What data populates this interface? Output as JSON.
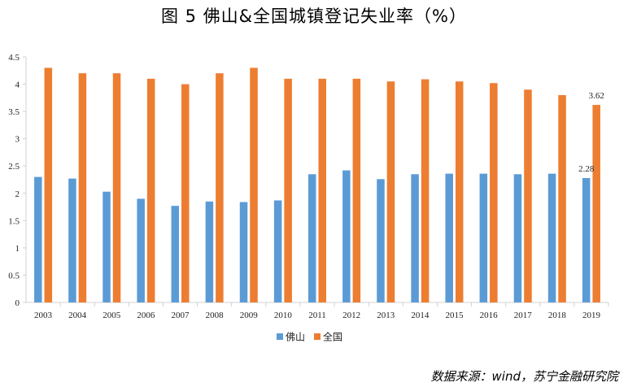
{
  "title": "图 5   佛山&全国城镇登记失业率（%）",
  "source": "数据来源：wind，苏宁金融研究院",
  "chart_data": {
    "type": "bar",
    "title": "图 5   佛山&全国城镇登记失业率（%）",
    "categories": [
      "2003",
      "2004",
      "2005",
      "2006",
      "2007",
      "2008",
      "2009",
      "2010",
      "2011",
      "2012",
      "2013",
      "2014",
      "2015",
      "2016",
      "2017",
      "2018",
      "2019"
    ],
    "series": [
      {
        "name": "佛山",
        "color": "#5b9bd5",
        "values": [
          2.3,
          2.27,
          2.03,
          1.9,
          1.77,
          1.85,
          1.84,
          1.87,
          2.35,
          2.42,
          2.26,
          2.35,
          2.36,
          2.36,
          2.35,
          2.36,
          2.28
        ]
      },
      {
        "name": "全国",
        "color": "#ed7d31",
        "values": [
          4.3,
          4.2,
          4.2,
          4.1,
          4.0,
          4.2,
          4.3,
          4.1,
          4.1,
          4.1,
          4.05,
          4.09,
          4.05,
          4.02,
          3.9,
          3.8,
          3.62
        ]
      }
    ],
    "data_labels": [
      {
        "series": "佛山",
        "category": "2019",
        "text": "2.28"
      },
      {
        "series": "全国",
        "category": "2019",
        "text": "3.62"
      }
    ],
    "yticks": [
      "0",
      "0.5",
      "1",
      "1.5",
      "2",
      "2.5",
      "3",
      "3.5",
      "4",
      "4.5"
    ],
    "ylim": [
      0,
      4.5
    ],
    "xlabel": "",
    "ylabel": "",
    "grid": false,
    "legend_position": "bottom"
  }
}
